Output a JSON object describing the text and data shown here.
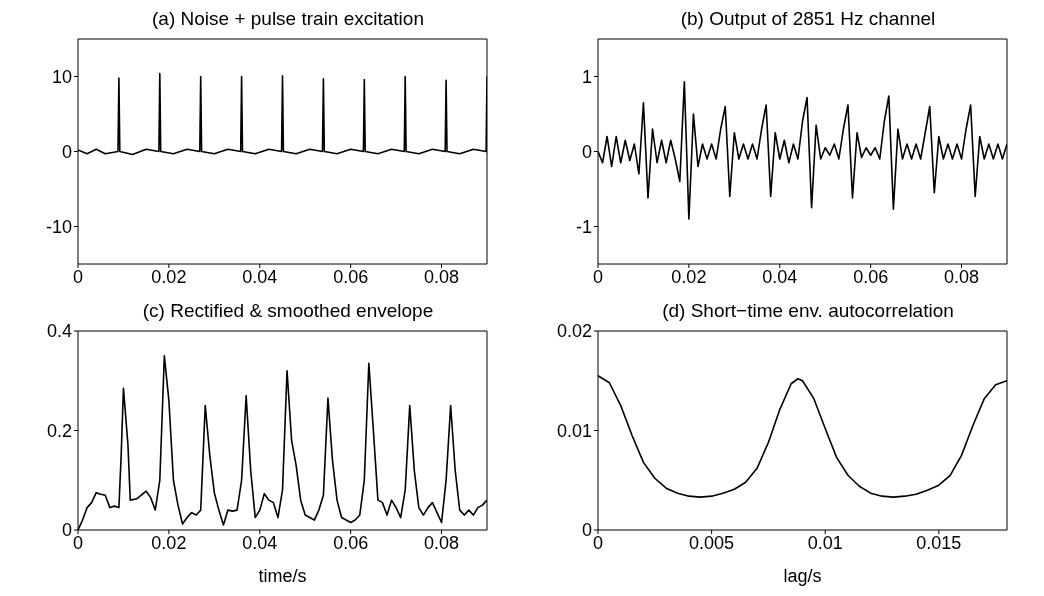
{
  "chart_data": [
    {
      "type": "line",
      "title": "(a) Noise + pulse train excitation",
      "color": "#000000",
      "xlim": [
        0,
        0.09
      ],
      "xticks": [
        0,
        0.02,
        0.04,
        0.06,
        0.08
      ],
      "ylim": [
        -15,
        15
      ],
      "yticks": [
        -10,
        0,
        10
      ],
      "x": [
        0,
        0.002,
        0.004,
        0.006,
        0.0088,
        0.009,
        0.0092,
        0.012,
        0.015,
        0.0178,
        0.018,
        0.0182,
        0.021,
        0.024,
        0.0268,
        0.027,
        0.0272,
        0.03,
        0.033,
        0.0358,
        0.036,
        0.0362,
        0.039,
        0.042,
        0.0448,
        0.045,
        0.0452,
        0.048,
        0.051,
        0.0538,
        0.054,
        0.0542,
        0.057,
        0.06,
        0.0628,
        0.063,
        0.0632,
        0.066,
        0.069,
        0.0718,
        0.072,
        0.0722,
        0.075,
        0.078,
        0.0808,
        0.081,
        0.0812,
        0.084,
        0.087,
        0.0898,
        0.09
      ],
      "values": [
        0.2,
        -0.3,
        0.3,
        -0.3,
        0,
        9.8,
        0,
        -0.4,
        0.3,
        0,
        10.4,
        0,
        -0.3,
        0.3,
        0,
        10,
        0,
        -0.3,
        0.3,
        0,
        10,
        0,
        -0.3,
        0.3,
        0,
        10.1,
        0,
        -0.3,
        0.3,
        0,
        9.7,
        0,
        -0.3,
        0.3,
        0,
        9.6,
        0,
        -0.3,
        0.3,
        0,
        10,
        0,
        -0.3,
        0.3,
        0,
        9.5,
        0,
        -0.3,
        0.3,
        0,
        10
      ]
    },
    {
      "type": "line",
      "title": "(b) Output of 2851 Hz channel",
      "color": "#000000",
      "xlim": [
        0,
        0.09
      ],
      "xticks": [
        0,
        0.02,
        0.04,
        0.06,
        0.08
      ],
      "ylim": [
        -1.5,
        1.5
      ],
      "yticks": [
        -1,
        0,
        1
      ],
      "x": [
        0,
        0.001,
        0.002,
        0.003,
        0.004,
        0.005,
        0.006,
        0.007,
        0.008,
        0.009,
        0.01,
        0.011,
        0.012,
        0.013,
        0.014,
        0.015,
        0.016,
        0.017,
        0.018,
        0.019,
        0.02,
        0.021,
        0.022,
        0.023,
        0.024,
        0.025,
        0.026,
        0.027,
        0.028,
        0.029,
        0.03,
        0.031,
        0.032,
        0.033,
        0.034,
        0.035,
        0.036,
        0.037,
        0.038,
        0.039,
        0.04,
        0.041,
        0.042,
        0.043,
        0.044,
        0.045,
        0.046,
        0.047,
        0.048,
        0.049,
        0.05,
        0.051,
        0.052,
        0.053,
        0.054,
        0.055,
        0.056,
        0.057,
        0.058,
        0.059,
        0.06,
        0.061,
        0.062,
        0.063,
        0.064,
        0.065,
        0.066,
        0.067,
        0.068,
        0.069,
        0.07,
        0.071,
        0.072,
        0.073,
        0.074,
        0.075,
        0.076,
        0.077,
        0.078,
        0.079,
        0.08,
        0.081,
        0.082,
        0.083,
        0.084,
        0.085,
        0.086,
        0.087,
        0.088,
        0.089,
        0.09
      ],
      "values": [
        0,
        -0.15,
        0.2,
        -0.2,
        0.2,
        -0.15,
        0.15,
        -0.12,
        0.1,
        -0.3,
        0.65,
        -0.62,
        0.3,
        -0.15,
        0.15,
        -0.15,
        0.15,
        -0.1,
        -0.4,
        0.93,
        -0.9,
        0.5,
        -0.2,
        0.1,
        -0.1,
        0.1,
        -0.1,
        0.3,
        0.6,
        -0.6,
        0.25,
        -0.1,
        0.1,
        -0.1,
        0.1,
        -0.1,
        0.3,
        0.62,
        -0.6,
        0.25,
        -0.1,
        0.15,
        -0.15,
        0.1,
        -0.1,
        0.4,
        0.72,
        -0.75,
        0.35,
        -0.1,
        0.05,
        -0.05,
        0.1,
        -0.1,
        0.3,
        0.62,
        -0.62,
        0.25,
        -0.08,
        0.05,
        -0.05,
        0.05,
        -0.1,
        0.4,
        0.74,
        -0.77,
        0.3,
        -0.1,
        0.1,
        -0.1,
        0.1,
        -0.1,
        0.25,
        0.6,
        -0.55,
        0.2,
        -0.1,
        0.1,
        -0.1,
        0.1,
        -0.1,
        0.3,
        0.62,
        -0.6,
        0.2,
        -0.1,
        0.1,
        -0.1,
        0.1,
        -0.1,
        0.1
      ]
    },
    {
      "type": "line",
      "title": "(c) Rectified & smoothed envelope",
      "xlabel": "time/s",
      "color": "#000000",
      "xlim": [
        0,
        0.09
      ],
      "xticks": [
        0,
        0.02,
        0.04,
        0.06,
        0.08
      ],
      "ylim": [
        0,
        0.4
      ],
      "yticks": [
        0,
        0.2,
        0.4
      ],
      "x": [
        0,
        0.001,
        0.002,
        0.003,
        0.004,
        0.005,
        0.006,
        0.007,
        0.008,
        0.009,
        0.0095,
        0.01,
        0.011,
        0.0115,
        0.013,
        0.015,
        0.016,
        0.017,
        0.018,
        0.019,
        0.02,
        0.021,
        0.022,
        0.023,
        0.024,
        0.025,
        0.026,
        0.027,
        0.028,
        0.029,
        0.03,
        0.031,
        0.032,
        0.033,
        0.034,
        0.035,
        0.036,
        0.037,
        0.038,
        0.039,
        0.04,
        0.041,
        0.042,
        0.043,
        0.044,
        0.045,
        0.046,
        0.047,
        0.048,
        0.049,
        0.05,
        0.051,
        0.052,
        0.053,
        0.054,
        0.055,
        0.056,
        0.057,
        0.058,
        0.059,
        0.06,
        0.061,
        0.062,
        0.063,
        0.064,
        0.065,
        0.066,
        0.067,
        0.068,
        0.069,
        0.07,
        0.071,
        0.072,
        0.073,
        0.074,
        0.075,
        0.076,
        0.077,
        0.078,
        0.079,
        0.08,
        0.081,
        0.082,
        0.083,
        0.084,
        0.085,
        0.086,
        0.087,
        0.088,
        0.089,
        0.09
      ],
      "values": [
        0,
        0.02,
        0.045,
        0.055,
        0.075,
        0.072,
        0.07,
        0.045,
        0.048,
        0.045,
        0.15,
        0.285,
        0.17,
        0.06,
        0.063,
        0.078,
        0.065,
        0.04,
        0.1,
        0.35,
        0.26,
        0.1,
        0.05,
        0.012,
        0.025,
        0.035,
        0.03,
        0.04,
        0.25,
        0.15,
        0.075,
        0.04,
        0.01,
        0.04,
        0.038,
        0.04,
        0.1,
        0.27,
        0.12,
        0.025,
        0.04,
        0.073,
        0.06,
        0.055,
        0.025,
        0.08,
        0.32,
        0.18,
        0.13,
        0.06,
        0.03,
        0.025,
        0.02,
        0.04,
        0.07,
        0.265,
        0.14,
        0.06,
        0.025,
        0.02,
        0.015,
        0.02,
        0.03,
        0.1,
        0.335,
        0.2,
        0.06,
        0.055,
        0.03,
        0.06,
        0.045,
        0.025,
        0.08,
        0.25,
        0.12,
        0.045,
        0.03,
        0.045,
        0.055,
        0.035,
        0.015,
        0.1,
        0.25,
        0.12,
        0.04,
        0.03,
        0.04,
        0.03,
        0.045,
        0.05,
        0.06
      ]
    },
    {
      "type": "line",
      "title": "(d) Short−time env. autocorrelation",
      "xlabel": "lag/s",
      "color": "#000000",
      "xlim": [
        0,
        0.018
      ],
      "xticks": [
        0,
        0.005,
        0.01,
        0.015
      ],
      "ylim": [
        0,
        0.02
      ],
      "yticks": [
        0,
        0.01,
        0.02
      ],
      "x": [
        0,
        0.0005,
        0.001,
        0.0015,
        0.002,
        0.0025,
        0.003,
        0.0035,
        0.004,
        0.0045,
        0.005,
        0.0055,
        0.006,
        0.0065,
        0.007,
        0.0075,
        0.008,
        0.0085,
        0.0088,
        0.009,
        0.0095,
        0.01,
        0.0105,
        0.011,
        0.0115,
        0.012,
        0.0125,
        0.013,
        0.0135,
        0.014,
        0.0145,
        0.015,
        0.0155,
        0.016,
        0.0165,
        0.017,
        0.0175,
        0.018
      ],
      "values": [
        0.0155,
        0.0148,
        0.0125,
        0.0095,
        0.0068,
        0.0052,
        0.0042,
        0.0037,
        0.0034,
        0.0033,
        0.0034,
        0.0037,
        0.0041,
        0.0048,
        0.0062,
        0.0088,
        0.0121,
        0.0147,
        0.0152,
        0.015,
        0.0132,
        0.0102,
        0.0073,
        0.0055,
        0.0044,
        0.0037,
        0.0034,
        0.0033,
        0.0034,
        0.0036,
        0.004,
        0.0045,
        0.0055,
        0.0075,
        0.0105,
        0.0132,
        0.0146,
        0.015
      ]
    }
  ]
}
